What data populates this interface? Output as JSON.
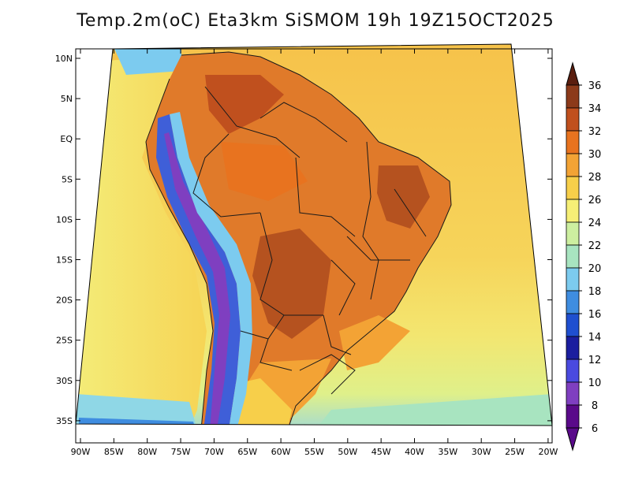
{
  "title": "Temp.2m(oC) Eta3km SiSMOM 19h 19Z15OCT2025",
  "lat_ticks": [
    "10N",
    "5N",
    "EQ",
    "5S",
    "10S",
    "15S",
    "20S",
    "25S",
    "30S",
    "35S"
  ],
  "lon_ticks": [
    "90W",
    "85W",
    "80W",
    "75W",
    "70W",
    "65W",
    "60W",
    "55W",
    "50W",
    "45W",
    "40W",
    "35W",
    "30W",
    "25W",
    "20W"
  ],
  "colorbar": {
    "labels": [
      "36",
      "34",
      "32",
      "30",
      "28",
      "26",
      "24",
      "22",
      "20",
      "18",
      "16",
      "14",
      "12",
      "10",
      "8",
      "6"
    ],
    "colors": [
      "#5a1e0f",
      "#8c3a1a",
      "#c0501e",
      "#e8731f",
      "#f3a335",
      "#f7cf4a",
      "#f6ef76",
      "#cdefa0",
      "#a8e4c0",
      "#7ccbef",
      "#3f8de0",
      "#1f4fd0",
      "#1b1e9f",
      "#4a4adf",
      "#7f3fc0",
      "#5a0a8a"
    ]
  },
  "colors": {
    "ocean_warm": "#f6c54a",
    "ocean_mild": "#f4ec78",
    "ocean_cool": "#d2ef9e",
    "land_hot": "#e07a2a",
    "land_very_hot": "#b5521f",
    "andes_cold": "#3f5fd8"
  }
}
